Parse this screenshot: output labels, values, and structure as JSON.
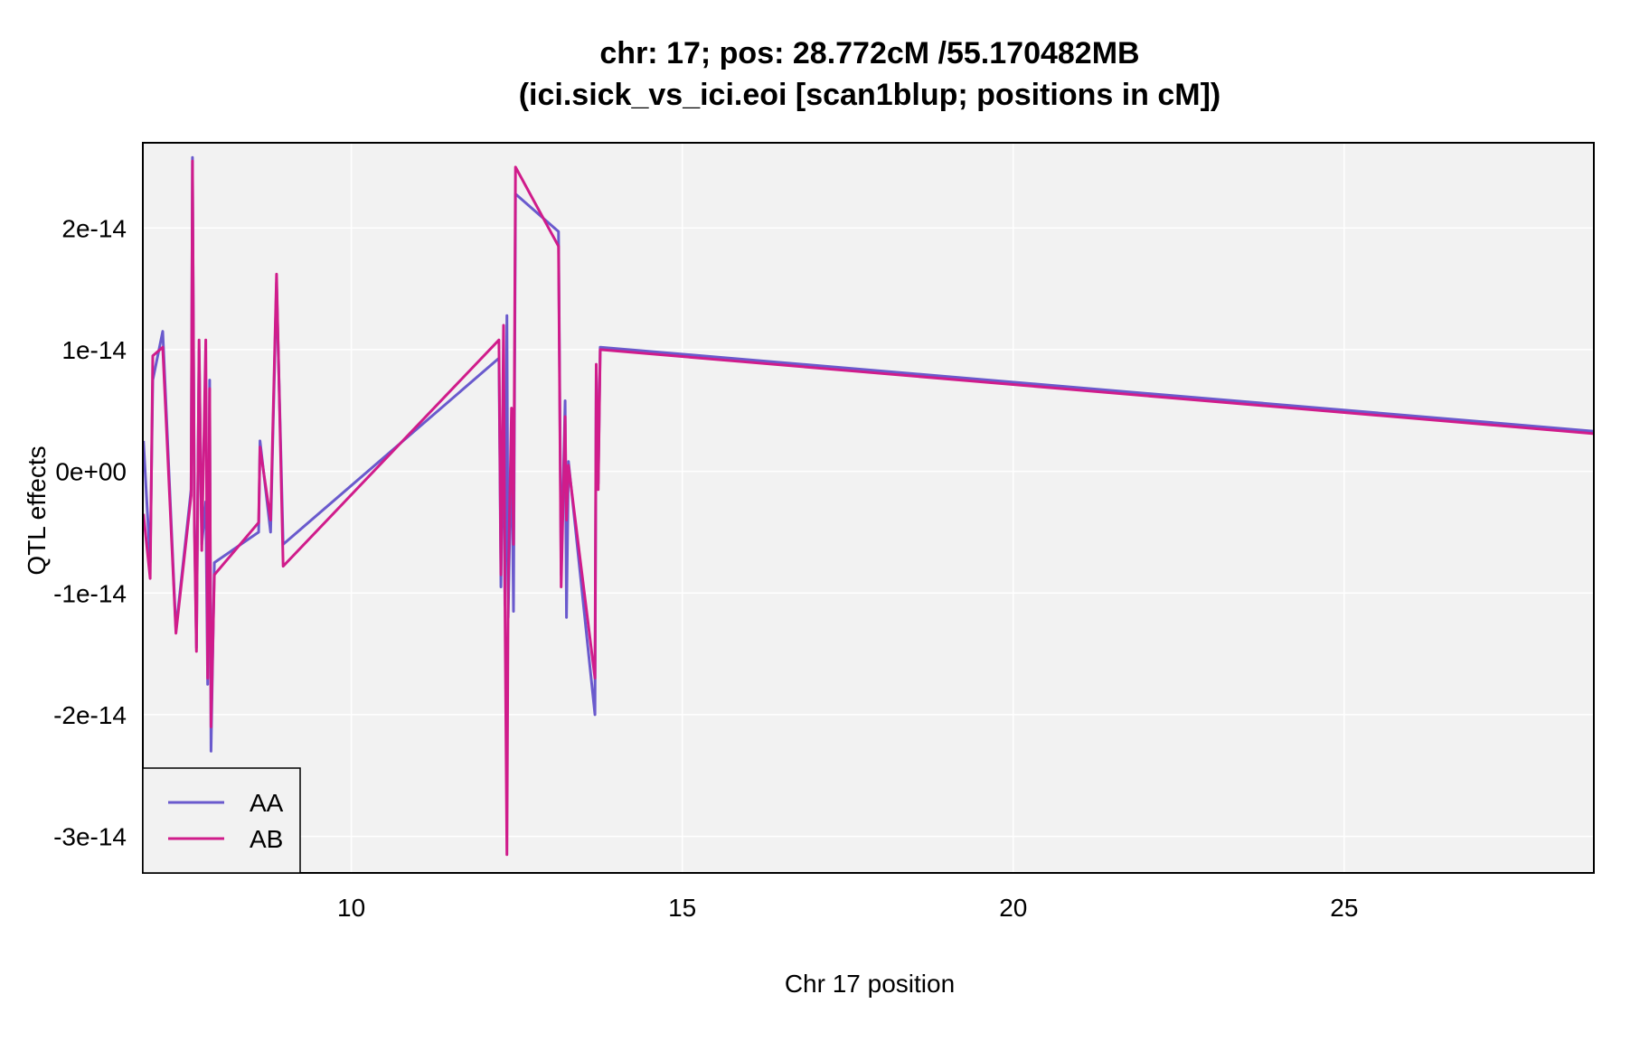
{
  "chart_data": {
    "type": "line",
    "title_line1": "chr: 17; pos: 28.772cM /55.170482MB",
    "title_line2": "(ici.sick_vs_ici.eoi [scan1blup; positions in cM])",
    "xlabel": "Chr 17 position",
    "ylabel": "QTL effects",
    "xlim": [
      6.85,
      28.772
    ],
    "ylim": [
      -3.3e-14,
      2.7e-14
    ],
    "x_ticks": [
      {
        "value": 10,
        "label": "10"
      },
      {
        "value": 15,
        "label": "15"
      },
      {
        "value": 20,
        "label": "20"
      },
      {
        "value": 25,
        "label": "25"
      }
    ],
    "y_ticks": [
      {
        "value": -3e-14,
        "label": "-3e-14"
      },
      {
        "value": -2e-14,
        "label": "-2e-14"
      },
      {
        "value": -1e-14,
        "label": "-1e-14"
      },
      {
        "value": 0,
        "label": "0e+00"
      },
      {
        "value": 1e-14,
        "label": "1e-14"
      },
      {
        "value": 2e-14,
        "label": "2e-14"
      }
    ],
    "grid": true,
    "legend_position": "bottom-left",
    "colors": {
      "panel_bg": "#f2f2f2",
      "grid": "#ffffff",
      "frame": "#000000"
    },
    "series": [
      {
        "name": "AA",
        "color": "#6a5acd",
        "points": [
          [
            6.86,
            2.5e-15
          ],
          [
            6.96,
            -7.5e-15
          ],
          [
            7.0,
            7.5e-15
          ],
          [
            7.15,
            1.15e-14
          ],
          [
            7.35,
            -1.3e-14
          ],
          [
            7.58,
            -1.5e-15
          ],
          [
            7.6,
            2.58e-14
          ],
          [
            7.63,
            -4e-15
          ],
          [
            7.66,
            -1.45e-14
          ],
          [
            7.7,
            1e-14
          ],
          [
            7.74,
            -6e-15
          ],
          [
            7.8,
            -2.5e-15
          ],
          [
            7.83,
            -1.75e-14
          ],
          [
            7.86,
            7.5e-15
          ],
          [
            7.88,
            -2.3e-14
          ],
          [
            7.93,
            -7.5e-15
          ],
          [
            8.6,
            -5e-15
          ],
          [
            8.62,
            2.5e-15
          ],
          [
            8.78,
            -5e-15
          ],
          [
            8.87,
            1.55e-14
          ],
          [
            8.97,
            -6e-15
          ],
          [
            12.23,
            9.3e-15
          ],
          [
            12.26,
            -9.5e-15
          ],
          [
            12.3,
            7e-15
          ],
          [
            12.32,
            -1.1e-14
          ],
          [
            12.35,
            1.28e-14
          ],
          [
            12.37,
            -1.2e-14
          ],
          [
            12.42,
            3e-15
          ],
          [
            12.45,
            -1.15e-14
          ],
          [
            12.48,
            2.28e-14
          ],
          [
            13.13,
            1.97e-14
          ],
          [
            13.17,
            -8.5e-15
          ],
          [
            13.23,
            5.8e-15
          ],
          [
            13.25,
            -1.2e-14
          ],
          [
            13.28,
            8e-16
          ],
          [
            13.68,
            -2e-14
          ],
          [
            13.7,
            8.2e-15
          ],
          [
            13.73,
            -1e-15
          ],
          [
            13.76,
            1.02e-14
          ],
          [
            28.772,
            3.3e-15
          ]
        ]
      },
      {
        "name": "AB",
        "color": "#d01c8b",
        "points": [
          [
            6.86,
            -3.5e-15
          ],
          [
            6.96,
            -8.8e-15
          ],
          [
            7.0,
            9.5e-15
          ],
          [
            7.15,
            1.02e-14
          ],
          [
            7.35,
            -1.33e-14
          ],
          [
            7.58,
            -2e-15
          ],
          [
            7.6,
            2.55e-14
          ],
          [
            7.63,
            -5e-15
          ],
          [
            7.66,
            -1.48e-14
          ],
          [
            7.7,
            1.08e-14
          ],
          [
            7.74,
            -6.5e-15
          ],
          [
            7.8,
            1.08e-14
          ],
          [
            7.83,
            -1.7e-14
          ],
          [
            7.86,
            6.8e-15
          ],
          [
            7.88,
            -2.1e-14
          ],
          [
            7.93,
            -8.5e-15
          ],
          [
            8.6,
            -4.2e-15
          ],
          [
            8.62,
            2e-15
          ],
          [
            8.78,
            -4e-15
          ],
          [
            8.87,
            1.62e-14
          ],
          [
            8.97,
            -7.8e-15
          ],
          [
            12.23,
            1.08e-14
          ],
          [
            12.26,
            -8.5e-15
          ],
          [
            12.3,
            1.2e-14
          ],
          [
            12.32,
            -1.05e-14
          ],
          [
            12.35,
            -3.15e-14
          ],
          [
            12.37,
            -9.5e-15
          ],
          [
            12.42,
            5.2e-15
          ],
          [
            12.45,
            -6e-15
          ],
          [
            12.48,
            2.5e-14
          ],
          [
            13.13,
            1.85e-14
          ],
          [
            13.17,
            -9.5e-15
          ],
          [
            13.23,
            4.5e-15
          ],
          [
            13.25,
            -4e-15
          ],
          [
            13.28,
            5e-16
          ],
          [
            13.68,
            -1.7e-14
          ],
          [
            13.7,
            8.8e-15
          ],
          [
            13.73,
            -1.5e-15
          ],
          [
            13.76,
            1e-14
          ],
          [
            28.772,
            3.1e-15
          ]
        ]
      }
    ]
  }
}
